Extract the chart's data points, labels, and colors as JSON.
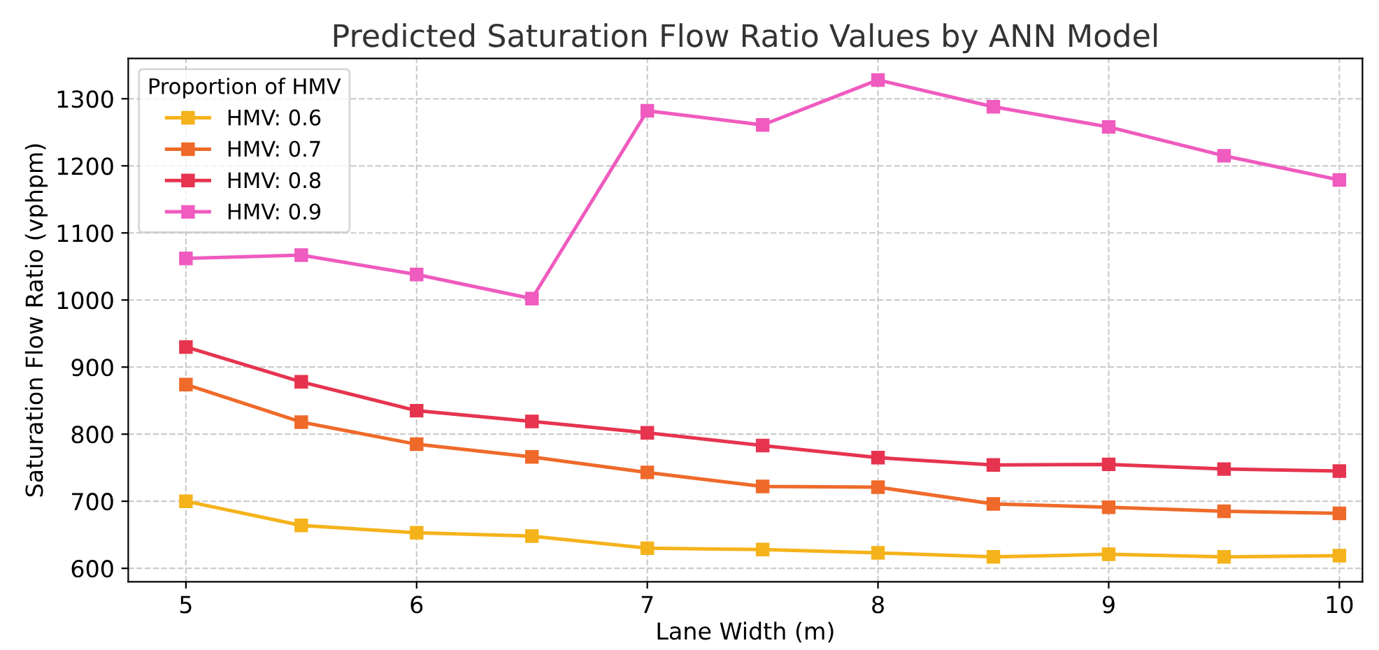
{
  "chart_data": {
    "type": "line",
    "title": "Predicted Saturation Flow Ratio Values by ANN Model",
    "xlabel": "Lane Width (m)",
    "ylabel": "Saturation Flow Ratio (vphpm)",
    "legend_title": "Proportion of HMV",
    "legend": "top left",
    "grid": true,
    "marker": "square",
    "line_style": "solid",
    "x": [
      5,
      5.5,
      6,
      6.5,
      7,
      7.5,
      8,
      8.5,
      9,
      9.5,
      10
    ],
    "xlim": [
      4.75,
      10.1
    ],
    "xticks": [
      5,
      6,
      7,
      8,
      9,
      10
    ],
    "ylim": [
      580,
      1360
    ],
    "yticks": [
      600,
      700,
      800,
      900,
      1000,
      1100,
      1200,
      1300
    ],
    "series": [
      {
        "name": "HMV: 0.6",
        "color": "#f5b31b",
        "values": [
          700,
          664,
          653,
          648,
          630,
          628,
          623,
          617,
          621,
          617,
          619
        ]
      },
      {
        "name": "HMV: 0.7",
        "color": "#ef6a2a",
        "values": [
          874,
          818,
          785,
          766,
          743,
          722,
          721,
          696,
          691,
          685,
          682
        ]
      },
      {
        "name": "HMV: 0.8",
        "color": "#e6344f",
        "values": [
          930,
          878,
          835,
          819,
          802,
          783,
          765,
          754,
          755,
          748,
          745
        ]
      },
      {
        "name": "HMV: 0.9",
        "color": "#ef5bbf",
        "values": [
          1062,
          1067,
          1038,
          1002,
          1282,
          1261,
          1328,
          1288,
          1258,
          1215,
          1179
        ]
      }
    ]
  }
}
